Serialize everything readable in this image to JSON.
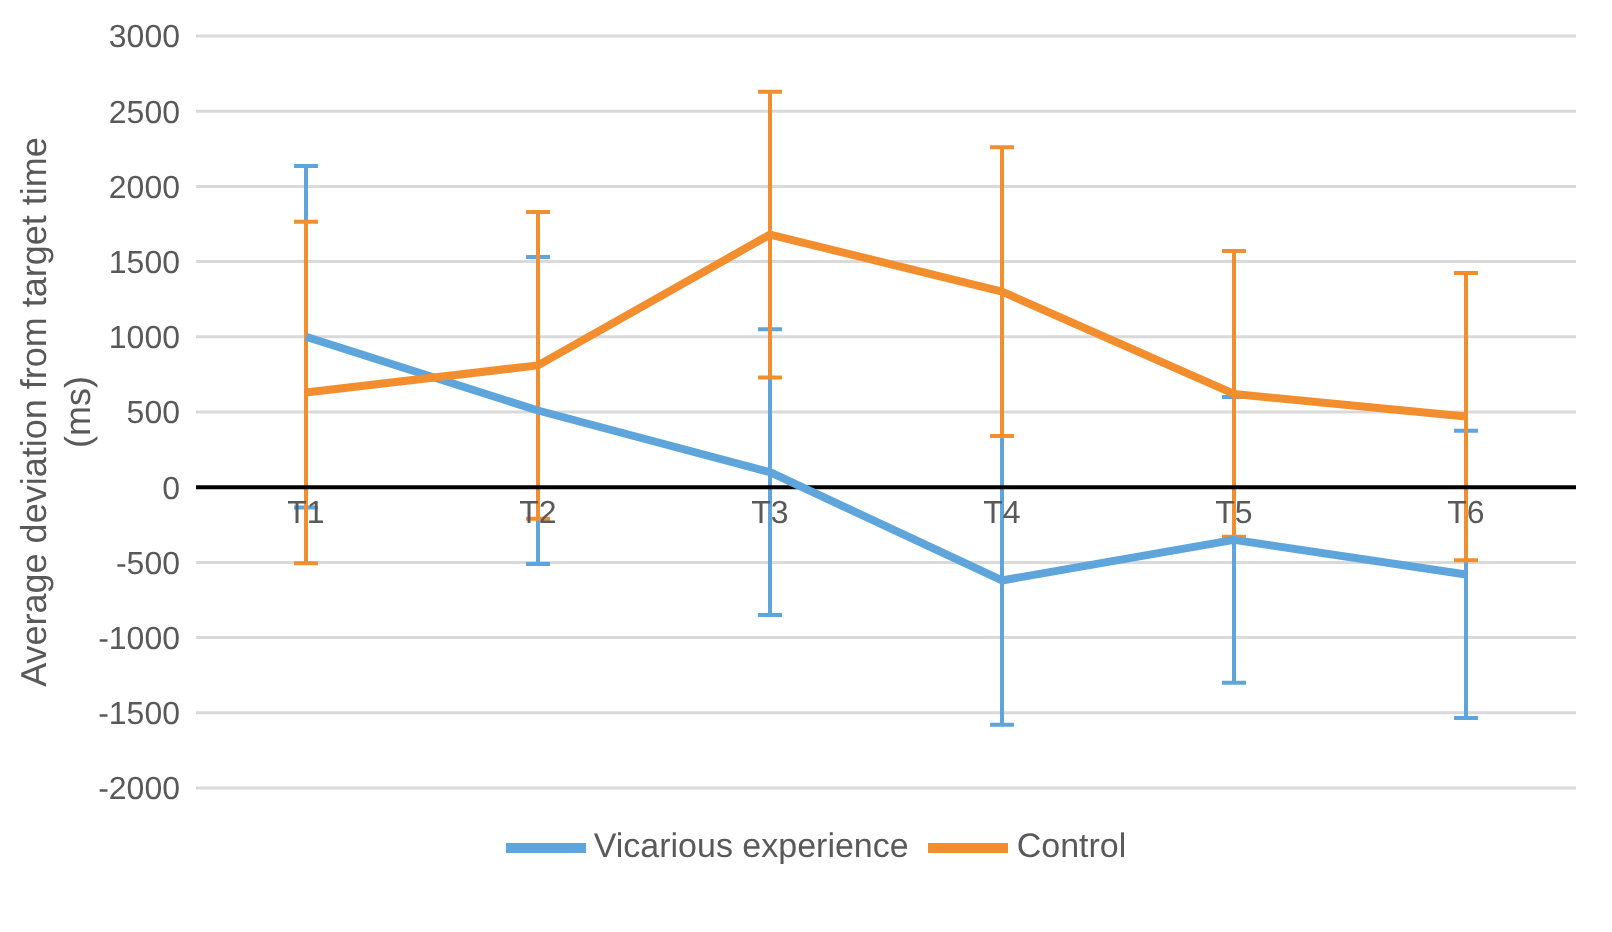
{
  "chart_data": {
    "type": "line",
    "ylabel": "Average deviation from target time (ms)",
    "categories": [
      "T1",
      "T2",
      "T3",
      "T4",
      "T5",
      "T6"
    ],
    "series": [
      {
        "name": "Vicarious experience",
        "color": "#5ea5dc",
        "values": [
          1000,
          510,
          100,
          -620,
          -350,
          -580
        ],
        "errors": [
          1135,
          1020,
          950,
          960,
          950,
          955
        ]
      },
      {
        "name": "Control",
        "color": "#f28e2e",
        "values": [
          630,
          810,
          1680,
          1300,
          620,
          470
        ],
        "errors": [
          1135,
          1020,
          950,
          960,
          950,
          955
        ]
      }
    ],
    "ylim": [
      -2000,
      3000
    ],
    "yticks": [
      -2000,
      -1500,
      -1000,
      -500,
      0,
      500,
      1000,
      1500,
      2000,
      2500,
      3000
    ],
    "grid": "y",
    "legend": "bottom",
    "marker": "none",
    "line_style": "solid"
  }
}
